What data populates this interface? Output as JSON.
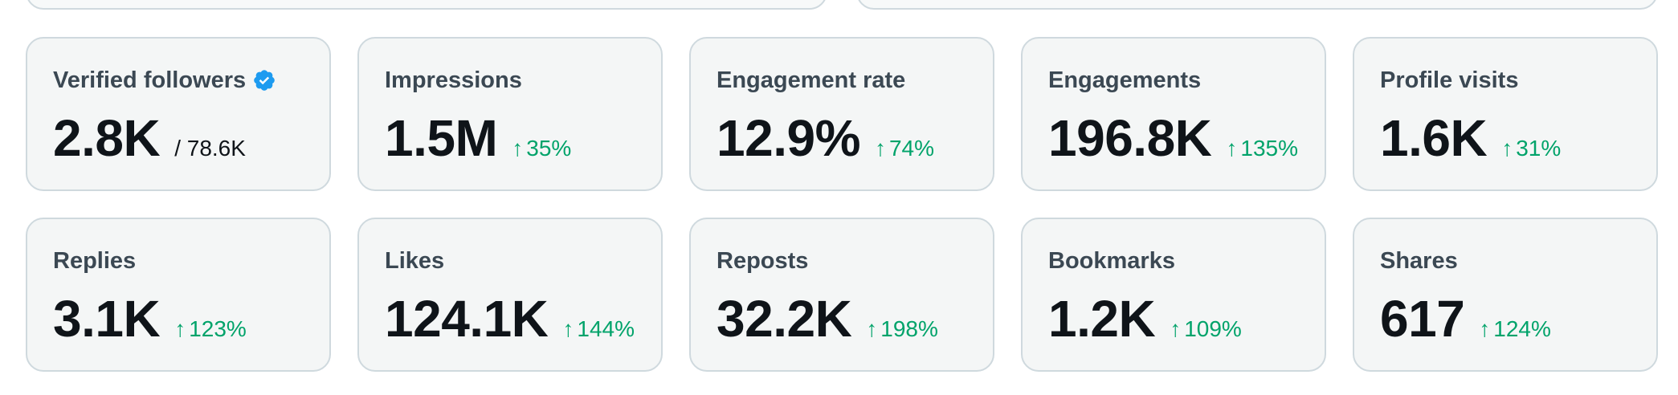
{
  "colors": {
    "positive_delta": "#00a36a",
    "verified_badge": "#1d9bf0",
    "card_border": "#cfd9de",
    "card_background": "#f4f6f6"
  },
  "metrics": [
    {
      "label": "Verified followers",
      "value": "2.8K",
      "sub": "/ 78.6K",
      "verified": true
    },
    {
      "label": "Impressions",
      "value": "1.5M",
      "delta": "35%",
      "delta_direction": "up"
    },
    {
      "label": "Engagement rate",
      "value": "12.9%",
      "delta": "74%",
      "delta_direction": "up"
    },
    {
      "label": "Engagements",
      "value": "196.8K",
      "delta": "135%",
      "delta_direction": "up"
    },
    {
      "label": "Profile visits",
      "value": "1.6K",
      "delta": "31%",
      "delta_direction": "up"
    },
    {
      "label": "Replies",
      "value": "3.1K",
      "delta": "123%",
      "delta_direction": "up"
    },
    {
      "label": "Likes",
      "value": "124.1K",
      "delta": "144%",
      "delta_direction": "up"
    },
    {
      "label": "Reposts",
      "value": "32.2K",
      "delta": "198%",
      "delta_direction": "up"
    },
    {
      "label": "Bookmarks",
      "value": "1.2K",
      "delta": "109%",
      "delta_direction": "up"
    },
    {
      "label": "Shares",
      "value": "617",
      "delta": "124%",
      "delta_direction": "up"
    }
  ],
  "icons": {
    "delta_arrow": "arrow-up-icon",
    "verified": "verified-badge-icon"
  }
}
